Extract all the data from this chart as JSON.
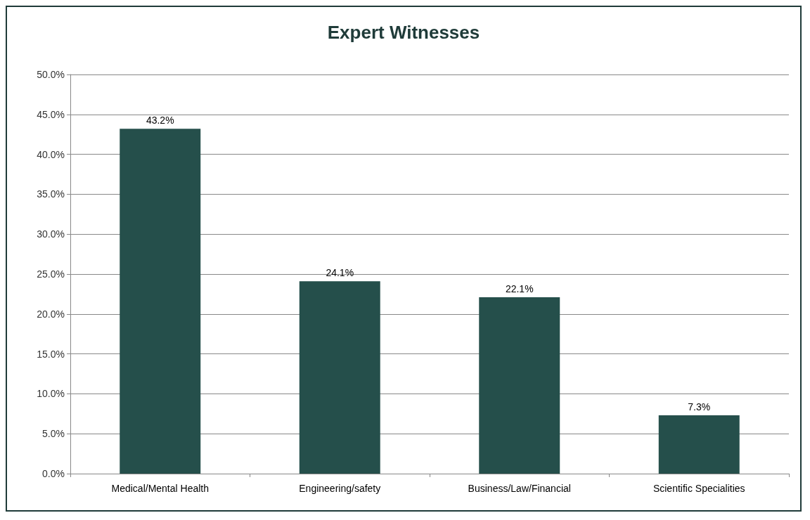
{
  "chart_data": {
    "type": "bar",
    "title": "Expert Witnesses",
    "categories": [
      "Medical/Mental Health",
      "Engineering/safety",
      "Business/Law/Financial",
      "Scientific Specialities"
    ],
    "values": [
      43.2,
      24.1,
      22.1,
      7.3
    ],
    "value_labels": [
      "43.2%",
      "24.1%",
      "22.1%",
      "7.3%"
    ],
    "color": "#254f4b",
    "ylim": [
      0,
      50
    ],
    "yticks": [
      {
        "value": 0,
        "label": "0.0%"
      },
      {
        "value": 5,
        "label": "5.0%"
      },
      {
        "value": 10,
        "label": "10.0%"
      },
      {
        "value": 15,
        "label": "15.0%"
      },
      {
        "value": 20,
        "label": "20.0%"
      },
      {
        "value": 25,
        "label": "25.0%"
      },
      {
        "value": 30,
        "label": "30.0%"
      },
      {
        "value": 35,
        "label": "35.0%"
      },
      {
        "value": 40,
        "label": "40.0%"
      },
      {
        "value": 45,
        "label": "45.0%"
      },
      {
        "value": 50,
        "label": "50.0%"
      }
    ],
    "grid": "y"
  }
}
